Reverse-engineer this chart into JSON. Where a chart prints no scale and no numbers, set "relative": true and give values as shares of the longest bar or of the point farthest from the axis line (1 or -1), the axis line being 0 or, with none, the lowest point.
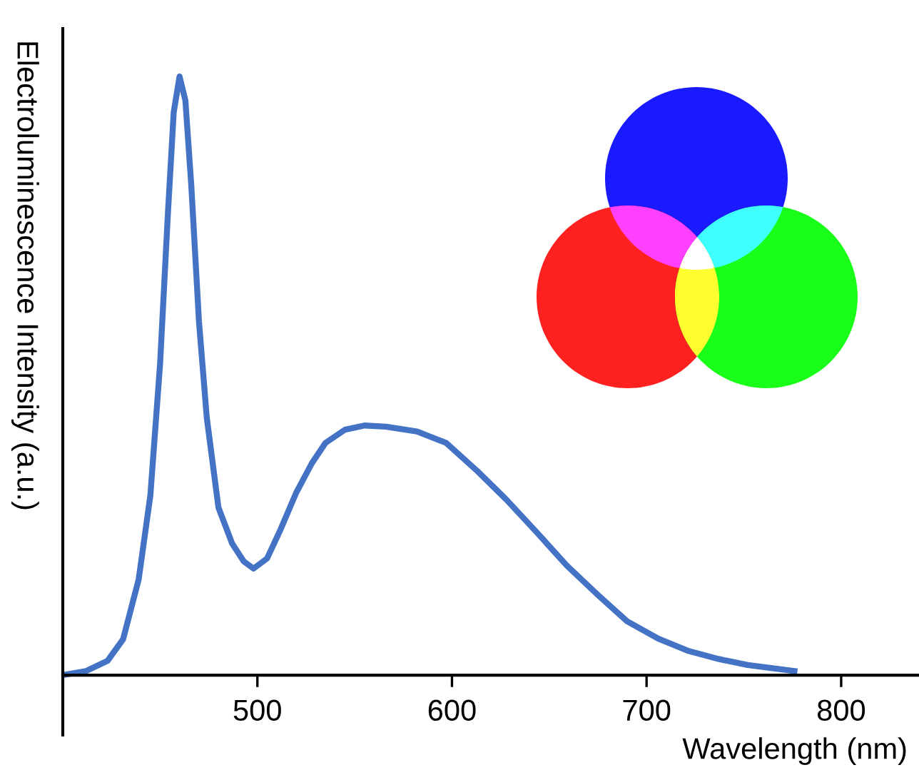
{
  "chart_data": {
    "type": "line",
    "relative": true,
    "xlabel": "Wavelength (nm)",
    "ylabel": "Electroluminescence Intensity (a.u.)",
    "xlim": [
      400,
      840
    ],
    "xticks": [
      500,
      600,
      700,
      800
    ],
    "grid": false,
    "legend": false,
    "marker": "none",
    "line_style": "solid",
    "series": [
      {
        "color": "#4472c4",
        "x": [
          400,
          412,
          423,
          431,
          439,
          445,
          450,
          454,
          457,
          460,
          463,
          466,
          470,
          474,
          480,
          487,
          493,
          498,
          505,
          512,
          520,
          528,
          535,
          545,
          555,
          566,
          582,
          597,
          613,
          628,
          644,
          659,
          675,
          690,
          706,
          721,
          737,
          752,
          776
        ],
        "values": [
          0,
          0.007,
          0.024,
          0.06,
          0.16,
          0.3,
          0.52,
          0.77,
          0.94,
          1.0,
          0.96,
          0.82,
          0.59,
          0.43,
          0.28,
          0.22,
          0.19,
          0.178,
          0.195,
          0.244,
          0.305,
          0.354,
          0.388,
          0.41,
          0.417,
          0.415,
          0.407,
          0.388,
          0.341,
          0.293,
          0.237,
          0.183,
          0.134,
          0.09,
          0.061,
          0.041,
          0.027,
          0.017,
          0.007
        ]
      }
    ]
  }
}
